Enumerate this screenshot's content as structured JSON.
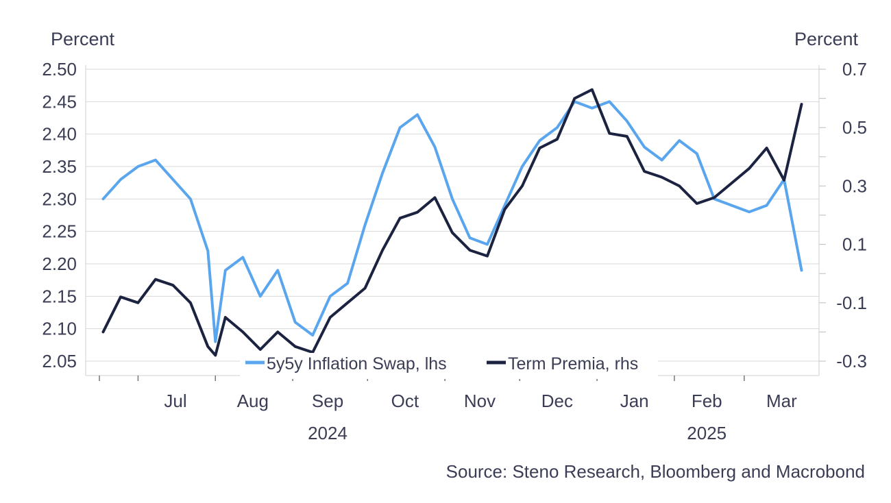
{
  "chart_data": {
    "type": "line",
    "left_axis_unit": "Percent",
    "right_axis_unit": "Percent",
    "source": "Source: Steno Research, Bloomberg and Macrobond",
    "y_left": {
      "min": 2.05,
      "max": 2.5,
      "ticks": [
        "2.05",
        "2.10",
        "2.15",
        "2.20",
        "2.25",
        "2.30",
        "2.35",
        "2.40",
        "2.45",
        "2.50"
      ]
    },
    "y_right": {
      "min": -0.3,
      "max": 0.7,
      "ticks": [
        "-0.3",
        "-0.1",
        "0.1",
        "0.3",
        "0.5",
        "0.7"
      ]
    },
    "x_months": [
      "Jul",
      "Aug",
      "Sep",
      "Oct",
      "Nov",
      "Dec",
      "Jan",
      "Feb",
      "Mar"
    ],
    "x_years": [
      "2024",
      "2025"
    ],
    "colors": {
      "swap": "#5aa6ee",
      "premia": "#1b2340",
      "grid": "#d8d8d8",
      "text": "#3b3d55"
    },
    "series": [
      {
        "name": "5y5y Inflation Swap, lhs",
        "axis": "left",
        "x": [
          "2024-06-17",
          "2024-06-24",
          "2024-07-01",
          "2024-07-08",
          "2024-07-15",
          "2024-07-22",
          "2024-07-29",
          "2024-08-01",
          "2024-08-05",
          "2024-08-12",
          "2024-08-19",
          "2024-08-26",
          "2024-09-02",
          "2024-09-09",
          "2024-09-16",
          "2024-09-23",
          "2024-09-30",
          "2024-10-07",
          "2024-10-14",
          "2024-10-21",
          "2024-10-28",
          "2024-11-04",
          "2024-11-11",
          "2024-11-18",
          "2024-11-25",
          "2024-12-02",
          "2024-12-09",
          "2024-12-16",
          "2024-12-23",
          "2024-12-30",
          "2025-01-06",
          "2025-01-13",
          "2025-01-20",
          "2025-01-27",
          "2025-02-03",
          "2025-02-10",
          "2025-02-17",
          "2025-02-24",
          "2025-03-03",
          "2025-03-10",
          "2025-03-17",
          "2025-03-24"
        ],
        "values": [
          2.3,
          2.33,
          2.35,
          2.36,
          2.33,
          2.3,
          2.22,
          2.08,
          2.19,
          2.21,
          2.15,
          2.19,
          2.11,
          2.09,
          2.15,
          2.17,
          2.26,
          2.34,
          2.41,
          2.43,
          2.38,
          2.3,
          2.24,
          2.23,
          2.29,
          2.35,
          2.39,
          2.41,
          2.45,
          2.44,
          2.45,
          2.42,
          2.38,
          2.36,
          2.39,
          2.37,
          2.3,
          2.29,
          2.28,
          2.29,
          2.33,
          2.19
        ]
      },
      {
        "name": "Term Premia, rhs",
        "axis": "right",
        "x": [
          "2024-06-17",
          "2024-06-24",
          "2024-07-01",
          "2024-07-08",
          "2024-07-15",
          "2024-07-22",
          "2024-07-29",
          "2024-08-01",
          "2024-08-05",
          "2024-08-12",
          "2024-08-19",
          "2024-08-26",
          "2024-09-02",
          "2024-09-09",
          "2024-09-16",
          "2024-09-23",
          "2024-09-30",
          "2024-10-07",
          "2024-10-14",
          "2024-10-21",
          "2024-10-28",
          "2024-11-04",
          "2024-11-11",
          "2024-11-18",
          "2024-11-25",
          "2024-12-02",
          "2024-12-09",
          "2024-12-16",
          "2024-12-23",
          "2024-12-30",
          "2025-01-06",
          "2025-01-13",
          "2025-01-20",
          "2025-01-27",
          "2025-02-03",
          "2025-02-10",
          "2025-02-17",
          "2025-02-24",
          "2025-03-03",
          "2025-03-10",
          "2025-03-17",
          "2025-03-24"
        ],
        "values": [
          -0.2,
          -0.08,
          -0.1,
          -0.02,
          -0.04,
          -0.1,
          -0.25,
          -0.28,
          -0.15,
          -0.2,
          -0.26,
          -0.2,
          -0.25,
          -0.27,
          -0.15,
          -0.1,
          -0.05,
          0.08,
          0.19,
          0.21,
          0.26,
          0.14,
          0.08,
          0.06,
          0.22,
          0.3,
          0.43,
          0.46,
          0.6,
          0.63,
          0.48,
          0.47,
          0.35,
          0.33,
          0.3,
          0.24,
          0.26,
          0.31,
          0.36,
          0.43,
          0.32,
          0.58
        ]
      }
    ]
  }
}
